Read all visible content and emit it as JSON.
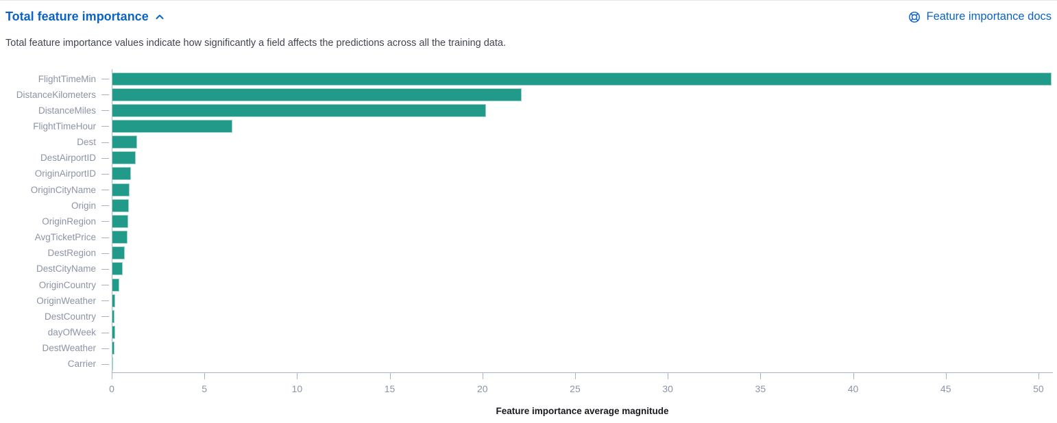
{
  "header": {
    "title": "Total feature importance",
    "docs_link_label": "Feature importance docs"
  },
  "description": "Total feature importance values indicate how significantly a field affects the predictions across all the training data.",
  "colors": {
    "accent_blue": "#0b63c4",
    "bar_teal": "#229a8a",
    "axis_line": "#a9b2c5",
    "axis_text": "#8b94a6",
    "body_text": "#3f4450"
  },
  "icons": {
    "collapse": "chevron-up-icon",
    "docs": "help-lifering-icon"
  },
  "chart_data": {
    "type": "bar",
    "orientation": "horizontal",
    "title": "",
    "xlabel": "Feature importance average magnitude",
    "ylabel": "",
    "categories": [
      "FlightTimeMin",
      "DistanceKilometers",
      "DistanceMiles",
      "FlightTimeHour",
      "Dest",
      "DestAirportID",
      "OriginAirportID",
      "OriginCityName",
      "Origin",
      "OriginRegion",
      "AvgTicketPrice",
      "DestRegion",
      "DestCityName",
      "OriginCountry",
      "OriginWeather",
      "DestCountry",
      "dayOfWeek",
      "DestWeather",
      "Carrier"
    ],
    "values": [
      50.7,
      22.1,
      20.2,
      6.5,
      1.35,
      1.3,
      1.05,
      0.96,
      0.93,
      0.89,
      0.85,
      0.7,
      0.6,
      0.4,
      0.19,
      0.15,
      0.17,
      0.15,
      0.08
    ],
    "xlim": [
      0,
      50.78
    ],
    "xticks": [
      0,
      5,
      10,
      15,
      20,
      25,
      30,
      35,
      40,
      45,
      50
    ],
    "grid": false,
    "legend": "none",
    "bar_color": "#229a8a"
  }
}
